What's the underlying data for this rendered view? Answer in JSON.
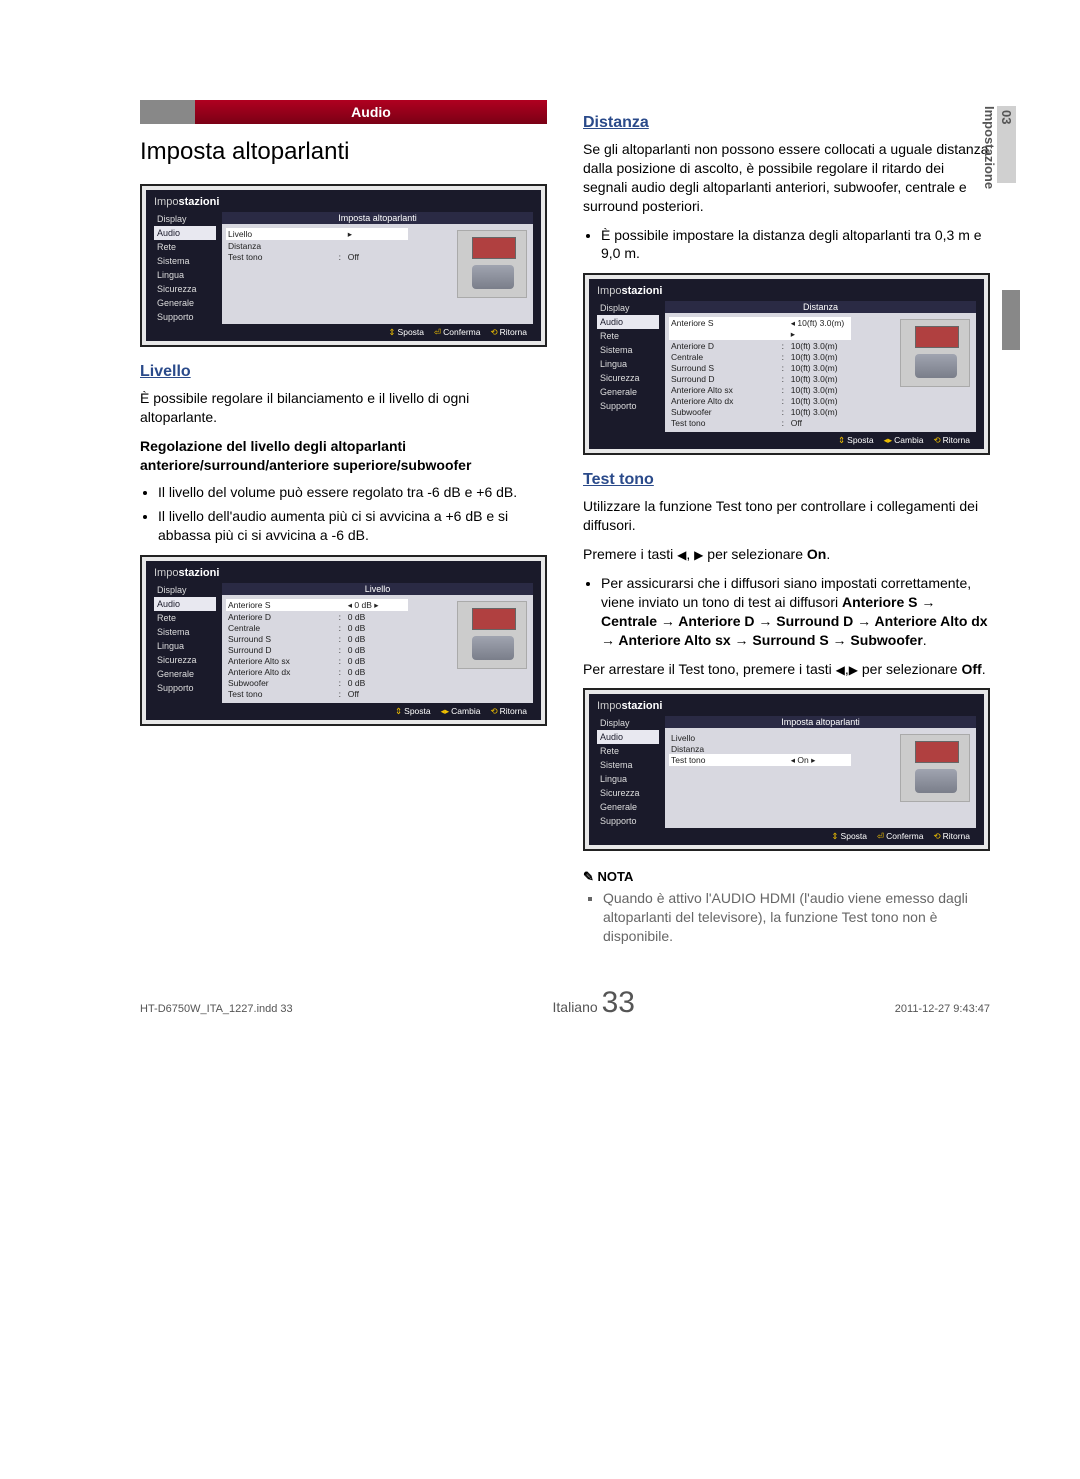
{
  "side": {
    "chapter": "Impostazione"
  },
  "left": {
    "bar": "Audio",
    "h1": "Imposta altoparlanti",
    "livello_h": "Livello",
    "livello_p": "È possibile regolare il bilanciamento e il livello di ogni altoparlante.",
    "reg_bold": "Regolazione del livello degli altoparlanti anteriore/surround/anteriore superiore/subwoofer",
    "bul1": "Il livello del volume può essere regolato tra -6 dB e +6 dB.",
    "bul2": "Il livello dell'audio aumenta più ci si avvicina a +6 dB e si abbassa più ci si avvicina a -6 dB."
  },
  "right": {
    "dist_h": "Distanza",
    "dist_p": "Se gli altoparlanti non possono essere collocati a uguale distanza dalla posizione di ascolto, è possibile regolare il ritardo dei segnali audio degli altoparlanti anteriori, subwoofer, centrale e surround posteriori.",
    "dist_bul": "È possibile impostare la distanza degli altoparlanti tra 0,3 m e 9,0 m.",
    "test_h": "Test tono",
    "test_p1": "Utilizzare la funzione Test tono per controllare i collegamenti dei diffusori.",
    "test_p2a": "Premere i tasti ",
    "test_p2b": " per selezionare ",
    "test_on": "On",
    "test_bul_a": "Per assicurarsi che i diffusori siano impostati correttamente, viene inviato un tono di test ai diffusori ",
    "chain": "Anteriore S → Centrale → Anteriore D → Surround D → Anteriore Alto dx → Anteriore Alto sx → Surround S → Subwoofer",
    "test_stop_a": "Per arrestare il Test tono, premere i tasti ",
    "test_stop_b": " per selezionare ",
    "test_off": "Off",
    "nota_h": "NOTA",
    "nota_li": "Quando è attivo l'AUDIO HDMI (l'audio viene emesso dagli altoparlanti del televisore), la funzione Test tono non è disponibile."
  },
  "osd_menu": [
    "Display",
    "Audio",
    "Rete",
    "Sistema",
    "Lingua",
    "Sicurezza",
    "Generale",
    "Supporto"
  ],
  "osd_title_pre": "Impo",
  "osd_title_bold": "stazioni",
  "osd1": {
    "panel_hd": "Imposta altoparlanti",
    "rows": [
      {
        "lab": "Livello",
        "sep": "",
        "val": "▸",
        "hl": true
      },
      {
        "lab": "Distanza",
        "sep": "",
        "val": ""
      },
      {
        "lab": "Test tono",
        "sep": ":",
        "val": "Off"
      }
    ],
    "footer": [
      "Sposta",
      "Conferma",
      "Ritorna"
    ],
    "ftype": [
      "mv",
      "ok",
      "rt"
    ]
  },
  "osd2": {
    "panel_hd": "Livello",
    "rows": [
      {
        "lab": "Anteriore S",
        "sep": "",
        "val": "◂ 0 dB ▸",
        "hl": true
      },
      {
        "lab": "Anteriore D",
        "sep": ":",
        "val": "0 dB"
      },
      {
        "lab": "Centrale",
        "sep": ":",
        "val": "0 dB"
      },
      {
        "lab": "Surround S",
        "sep": ":",
        "val": "0 dB"
      },
      {
        "lab": "Surround D",
        "sep": ":",
        "val": "0 dB"
      },
      {
        "lab": "Anteriore Alto sx",
        "sep": ":",
        "val": "0 dB"
      },
      {
        "lab": "Anteriore Alto dx",
        "sep": ":",
        "val": "0 dB"
      },
      {
        "lab": "Subwoofer",
        "sep": ":",
        "val": "0 dB"
      },
      {
        "lab": "Test tono",
        "sep": ":",
        "val": "Off"
      }
    ],
    "footer": [
      "Sposta",
      "Cambia",
      "Ritorna"
    ],
    "ftype": [
      "mv",
      "ch",
      "rt"
    ]
  },
  "osd3": {
    "panel_hd": "Distanza",
    "rows": [
      {
        "lab": "Anteriore S",
        "sep": "",
        "val": "◂ 10(ft) 3.0(m) ▸",
        "hl": true
      },
      {
        "lab": "Anteriore D",
        "sep": ":",
        "val": "10(ft) 3.0(m)"
      },
      {
        "lab": "Centrale",
        "sep": ":",
        "val": "10(ft) 3.0(m)"
      },
      {
        "lab": "Surround S",
        "sep": ":",
        "val": "10(ft) 3.0(m)"
      },
      {
        "lab": "Surround D",
        "sep": ":",
        "val": "10(ft) 3.0(m)"
      },
      {
        "lab": "Anteriore Alto sx",
        "sep": ":",
        "val": "10(ft) 3.0(m)"
      },
      {
        "lab": "Anteriore Alto dx",
        "sep": ":",
        "val": "10(ft) 3.0(m)"
      },
      {
        "lab": "Subwoofer",
        "sep": ":",
        "val": "10(ft) 3.0(m)"
      },
      {
        "lab": "Test tono",
        "sep": ":",
        "val": "Off"
      }
    ],
    "footer": [
      "Sposta",
      "Cambia",
      "Ritorna"
    ],
    "ftype": [
      "mv",
      "ch",
      "rt"
    ]
  },
  "osd4": {
    "panel_hd": "Imposta altoparlanti",
    "rows": [
      {
        "lab": "Livello",
        "sep": "",
        "val": ""
      },
      {
        "lab": "Distanza",
        "sep": "",
        "val": ""
      },
      {
        "lab": "Test tono",
        "sep": "",
        "val": "◂ On ▸",
        "hl": true
      }
    ],
    "footer": [
      "Sposta",
      "Conferma",
      "Ritorna"
    ],
    "ftype": [
      "mv",
      "ok",
      "rt"
    ]
  },
  "foot": {
    "indd": "HT-D6750W_ITA_1227.indd   33",
    "lang": "Italiano",
    "page": "33",
    "date": "2011-12-27    9:43:47"
  }
}
